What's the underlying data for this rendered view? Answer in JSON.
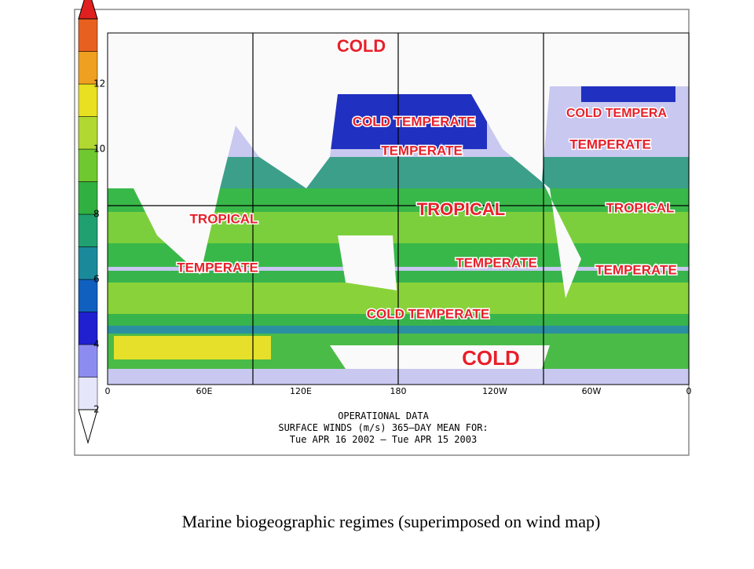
{
  "colorbar": {
    "ticks": [
      2,
      4,
      6,
      8,
      10,
      12
    ]
  },
  "map": {
    "x_labels": [
      "0",
      "60E",
      "120E",
      "180",
      "120W",
      "60W",
      "0"
    ],
    "regimes": [
      "COLD",
      "COLD TEMPERATE",
      "TEMPERATE",
      "COLD TEMPERA",
      "TEMPERATE",
      "TROPICAL",
      "TROPICAL",
      "TROPICAL",
      "TEMPERATE",
      "TEMPERATE",
      "TEMPERATE",
      "COLD TEMPERATE",
      "COLD"
    ]
  },
  "footer": [
    "OPERATIONAL DATA",
    "SURFACE WINDS (m/s)    365–DAY MEAN FOR:",
    "Tue APR 16 2002 – Tue APR 15 2003"
  ],
  "caption": "Marine biogeographic regimes (superimposed on wind map)"
}
